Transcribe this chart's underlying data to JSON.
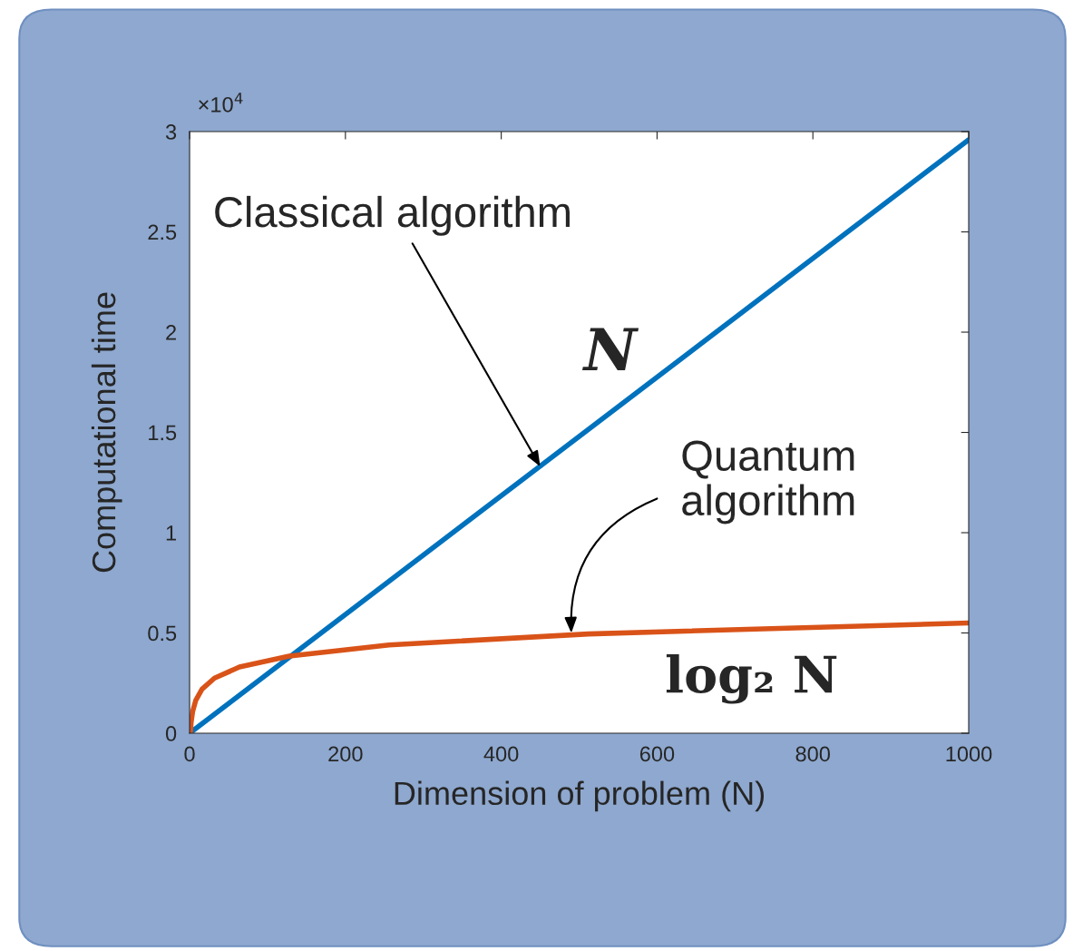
{
  "chart_data": {
    "type": "line",
    "xlabel": "Dimension of problem (N)",
    "ylabel": "Computational time",
    "xlim": [
      0,
      1000
    ],
    "xticks": [
      0,
      200,
      400,
      600,
      800,
      1000
    ],
    "ylim": [
      0,
      3
    ],
    "yticks": [
      0,
      0.5,
      1,
      1.5,
      2,
      2.5,
      3
    ],
    "grid": false,
    "legend": false,
    "series": [
      {
        "color": "#0072bd",
        "x": [
          0,
          1000
        ],
        "values": [
          0,
          2.96
        ]
      },
      {
        "color": "#d95319",
        "x": [
          1,
          2,
          4,
          8,
          16,
          32,
          64,
          128,
          256,
          512,
          1000
        ],
        "values": [
          0,
          0.055,
          0.11,
          0.165,
          0.22,
          0.275,
          0.33,
          0.385,
          0.44,
          0.495,
          0.55
        ]
      }
    ],
    "annotations": [
      "×10$^{4}$",
      {
        "text": "Classical algorithm",
        "x": 450,
        "y": 1.33
      },
      "N",
      {
        "text": "Quantum algorithm",
        "x": 490,
        "y": 0.5
      },
      "log₂ N"
    ]
  }
}
